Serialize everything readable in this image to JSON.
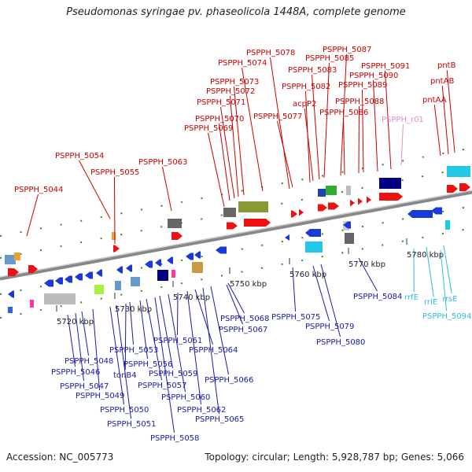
{
  "title": "Pseudomonas syringae pv. phaseolicola 1448A, complete genome",
  "footer": {
    "accession": "Accession: NC_005773",
    "summary": "Topology: circular; Length: 5,928,787 bp; Genes: 5,066"
  },
  "colors": {
    "top_labels": "#cc0000",
    "bottom_labels": "#1a1aaa",
    "rna_labels": "#33bbdd",
    "pseudo_label": "#e090c8",
    "axis": "#999999",
    "ticks": "#2a8a2a"
  },
  "scale_labels": [
    "5720 kbp",
    "5730 kbp",
    "5740 kbp",
    "5750 kbp",
    "5760 kbp",
    "5770 kbp",
    "5780 kbp"
  ],
  "top_genes": [
    {
      "label": "PSPPH_5044"
    },
    {
      "label": "PSPPH_5054"
    },
    {
      "label": "PSPPH_5055"
    },
    {
      "label": "PSPPH_5063"
    },
    {
      "label": "PSPPH_5069"
    },
    {
      "label": "PSPPH_5070"
    },
    {
      "label": "PSPPH_5071"
    },
    {
      "label": "PSPPH_5072"
    },
    {
      "label": "PSPPH_5073"
    },
    {
      "label": "PSPPH_5074"
    },
    {
      "label": "PSPPH_5078"
    },
    {
      "label": "PSPPH_5077"
    },
    {
      "label": "PSPPH_5082"
    },
    {
      "label": "acpP2"
    },
    {
      "label": "PSPPH_5083"
    },
    {
      "label": "PSPPH_5085"
    },
    {
      "label": "PSPPH_5087"
    },
    {
      "label": "PSPPH_5086"
    },
    {
      "label": "PSPPH_5088"
    },
    {
      "label": "PSPPH_5089"
    },
    {
      "label": "PSPPH_5090"
    },
    {
      "label": "PSPPH_5091"
    },
    {
      "label": "PSPPH_r01"
    },
    {
      "label": "pntAA"
    },
    {
      "label": "pntAB"
    },
    {
      "label": "pntB"
    }
  ],
  "bottom_genes": [
    {
      "label": "PSPPH_5046"
    },
    {
      "label": "PSPPH_5047"
    },
    {
      "label": "PSPPH_5048"
    },
    {
      "label": "PSPPH_5049"
    },
    {
      "label": "PSPPH_5050"
    },
    {
      "label": "PSPPH_5051"
    },
    {
      "label": "tonB4"
    },
    {
      "label": "PSPPH_5053"
    },
    {
      "label": "PSPPH_5056"
    },
    {
      "label": "PSPPH_5057"
    },
    {
      "label": "PSPPH_5058"
    },
    {
      "label": "PSPPH_5059"
    },
    {
      "label": "PSPPH_5060"
    },
    {
      "label": "PSPPH_5061"
    },
    {
      "label": "PSPPH_5062"
    },
    {
      "label": "PSPPH_5064"
    },
    {
      "label": "PSPPH_5065"
    },
    {
      "label": "PSPPH_5066"
    },
    {
      "label": "PSPPH_5067"
    },
    {
      "label": "PSPPH_5068"
    },
    {
      "label": "PSPPH_5075"
    },
    {
      "label": "PSPPH_5079"
    },
    {
      "label": "PSPPH_5080"
    },
    {
      "label": "PSPPH_5084"
    },
    {
      "label": "rrfE"
    },
    {
      "label": "rrlE"
    },
    {
      "label": "rrsE"
    },
    {
      "label": "PSPPH_5094"
    }
  ]
}
